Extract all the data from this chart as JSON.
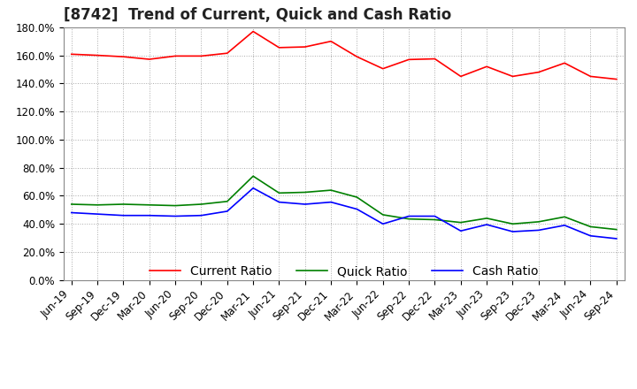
{
  "title": "[8742]  Trend of Current, Quick and Cash Ratio",
  "x_labels": [
    "Jun-19",
    "Sep-19",
    "Dec-19",
    "Mar-20",
    "Jun-20",
    "Sep-20",
    "Dec-20",
    "Mar-21",
    "Jun-21",
    "Sep-21",
    "Dec-21",
    "Mar-22",
    "Jun-22",
    "Sep-22",
    "Dec-22",
    "Mar-23",
    "Jun-23",
    "Sep-23",
    "Dec-23",
    "Mar-24",
    "Jun-24",
    "Sep-24"
  ],
  "current_ratio": [
    1.608,
    1.6,
    1.59,
    1.572,
    1.595,
    1.595,
    1.615,
    1.77,
    1.655,
    1.66,
    1.7,
    1.59,
    1.505,
    1.57,
    1.575,
    1.45,
    1.52,
    1.45,
    1.48,
    1.545,
    1.45,
    1.43
  ],
  "quick_ratio": [
    0.54,
    0.535,
    0.54,
    0.535,
    0.53,
    0.54,
    0.56,
    0.74,
    0.62,
    0.625,
    0.64,
    0.59,
    0.465,
    0.435,
    0.43,
    0.41,
    0.44,
    0.4,
    0.415,
    0.45,
    0.38,
    0.36
  ],
  "cash_ratio": [
    0.48,
    0.47,
    0.46,
    0.46,
    0.455,
    0.46,
    0.49,
    0.655,
    0.555,
    0.54,
    0.555,
    0.505,
    0.4,
    0.455,
    0.455,
    0.35,
    0.395,
    0.345,
    0.355,
    0.39,
    0.315,
    0.295
  ],
  "current_color": "#FF0000",
  "quick_color": "#008000",
  "cash_color": "#0000FF",
  "ylim": [
    0.0,
    1.8
  ],
  "yticks": [
    0.0,
    0.2,
    0.4,
    0.6,
    0.8,
    1.0,
    1.2,
    1.4,
    1.6,
    1.8
  ],
  "ytick_labels": [
    "0.0%",
    "20.0%",
    "40.0%",
    "60.0%",
    "80.0%",
    "100.0%",
    "120.0%",
    "140.0%",
    "160.0%",
    "180.0%"
  ],
  "background_color": "#ffffff",
  "plot_bg_color": "#ffffff",
  "grid_color": "#aaaaaa",
  "title_fontsize": 12,
  "legend_fontsize": 10,
  "tick_fontsize": 8.5
}
